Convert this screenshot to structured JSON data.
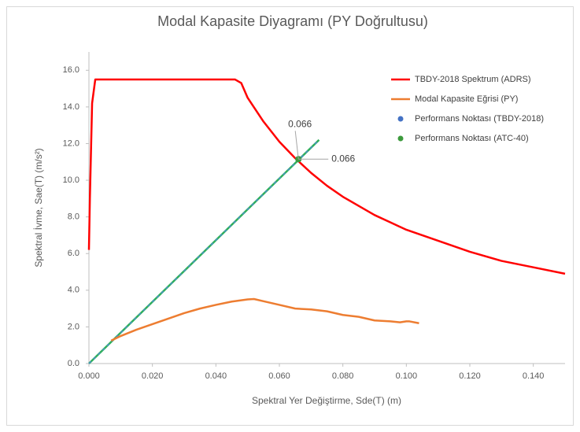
{
  "chart_data": {
    "type": "line",
    "title": "Modal Kapasite Diyagramı (PY Doğrultusu)",
    "x_label": "Spektral Yer Değiştirme, Sde(T) (m)",
    "y_label": "Spektral İvme, Sae(T) (m/s²)",
    "xlim": [
      0,
      0.15
    ],
    "xticks": [
      {
        "value": 0,
        "label": "0.000"
      },
      {
        "value": 0.02,
        "label": "0.020"
      },
      {
        "value": 0.04,
        "label": "0.040"
      },
      {
        "value": 0.06,
        "label": "0.060"
      },
      {
        "value": 0.08,
        "label": "0.080"
      },
      {
        "value": 0.1,
        "label": "0.100"
      },
      {
        "value": 0.12,
        "label": "0.120"
      },
      {
        "value": 0.14,
        "label": "0.140"
      }
    ],
    "ylim": [
      0,
      17
    ],
    "yticks": [
      {
        "value": 0,
        "label": "0.0"
      },
      {
        "value": 2,
        "label": "2.0"
      },
      {
        "value": 4,
        "label": "4.0"
      },
      {
        "value": 6,
        "label": "6.0"
      },
      {
        "value": 8,
        "label": "8.0"
      },
      {
        "value": 10,
        "label": "10.0"
      },
      {
        "value": 12,
        "label": "12.0"
      },
      {
        "value": 14,
        "label": "14.0"
      },
      {
        "value": 16,
        "label": "16.0"
      }
    ],
    "grid": false,
    "legend": "upper right",
    "series": [
      {
        "name": "TBDY-2018 Spektrum (ADRS)",
        "color": "#ff0000",
        "style": "line",
        "x": [
          0,
          0.0003,
          0.001,
          0.002,
          0.046,
          0.048,
          0.05,
          0.055,
          0.06,
          0.065,
          0.07,
          0.075,
          0.08,
          0.085,
          0.09,
          0.095,
          0.1,
          0.11,
          0.12,
          0.13,
          0.14,
          0.15
        ],
        "values": [
          6.2,
          9,
          14.2,
          15.5,
          15.5,
          15.3,
          14.5,
          13.2,
          12.1,
          11.2,
          10.4,
          9.7,
          9.1,
          8.6,
          8.1,
          7.7,
          7.3,
          6.7,
          6.1,
          5.6,
          5.25,
          4.9
        ]
      },
      {
        "name": "Modal Kapasite Eğrisi (PY)",
        "color": "#ed7d31",
        "style": "line",
        "x": [
          0.007,
          0.01,
          0.015,
          0.02,
          0.025,
          0.03,
          0.035,
          0.04,
          0.045,
          0.05,
          0.052,
          0.055,
          0.06,
          0.065,
          0.07,
          0.075,
          0.08,
          0.085,
          0.09,
          0.095,
          0.098,
          0.1,
          0.101,
          0.104
        ],
        "values": [
          1.25,
          1.5,
          1.85,
          2.15,
          2.45,
          2.75,
          3.0,
          3.2,
          3.38,
          3.5,
          3.52,
          3.4,
          3.2,
          3.0,
          2.95,
          2.85,
          2.65,
          2.55,
          2.35,
          2.3,
          2.25,
          2.3,
          2.3,
          2.2
        ]
      },
      {
        "name": "Performans Noktası (TBDY-2018)",
        "color": "#4472c4",
        "style": "point",
        "x": [
          0.066
        ],
        "values": [
          11.15
        ]
      },
      {
        "name": "Performans Noktası (ATC-40)",
        "color": "#3c9a3c",
        "style": "point",
        "x": [
          0.066
        ],
        "values": [
          11.15
        ]
      }
    ],
    "lines": [
      {
        "color": "#2fb05a",
        "x": [
          0,
          0.0725
        ],
        "values": [
          0,
          12.2
        ]
      },
      {
        "color": "#4a90c8",
        "x": [
          0,
          0.0725
        ],
        "values": [
          0,
          12.2
        ]
      }
    ]
  }
}
